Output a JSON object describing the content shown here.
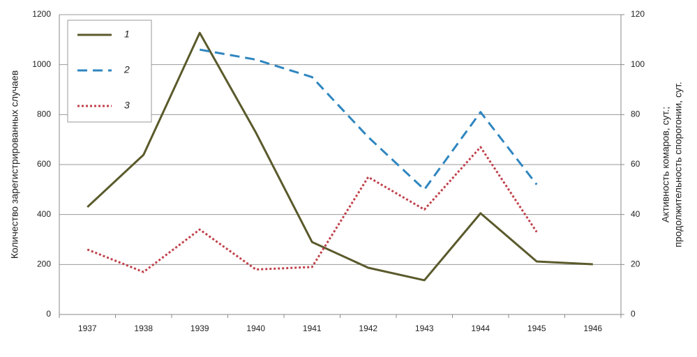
{
  "chart_data": {
    "type": "line",
    "categories": [
      "1937",
      "1938",
      "1939",
      "1940",
      "1941",
      "1942",
      "1943",
      "1944",
      "1945",
      "1946"
    ],
    "series": [
      {
        "name": "1",
        "color": "#5a5a2c",
        "dash": "solid",
        "values": [
          430,
          639,
          1127,
          728,
          290,
          187,
          137,
          405,
          212,
          201
        ]
      },
      {
        "name": "2",
        "color": "#2f86c0",
        "dash": "dashed",
        "axis": "y2",
        "values": [
          null,
          null,
          106,
          102,
          95,
          71,
          50,
          81,
          52,
          null
        ]
      },
      {
        "name": "3",
        "color": "#c0404a",
        "dash": "dotted",
        "axis": "y2",
        "values": [
          26,
          17,
          34,
          18,
          19,
          55,
          42,
          67,
          33,
          null
        ]
      }
    ],
    "ylabel": "Количество зарегистрированных случаев",
    "y2label": [
      "Активность комаров, сут.;",
      "продолжительность спорогонии, сут."
    ],
    "ylim": [
      0,
      1200
    ],
    "yticks": [
      0,
      200,
      400,
      600,
      800,
      1000,
      1200
    ],
    "y2lim": [
      0,
      120
    ],
    "y2ticks": [
      0,
      20,
      40,
      60,
      80,
      100,
      120
    ],
    "grid": true,
    "legend": "upper left"
  }
}
